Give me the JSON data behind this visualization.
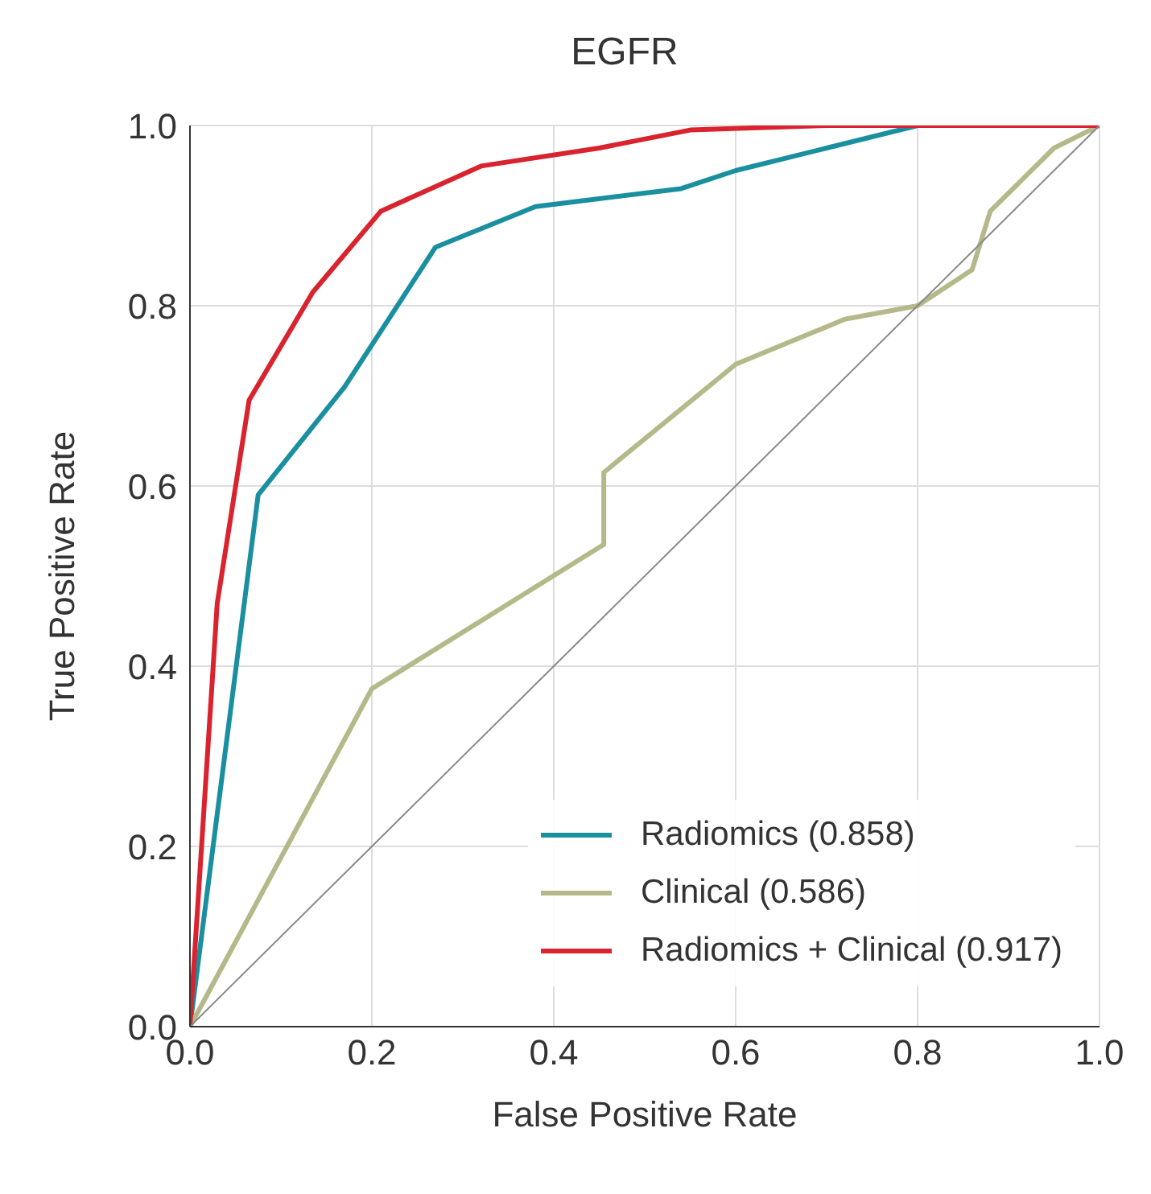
{
  "chart_data": {
    "type": "line",
    "title": "EGFR",
    "xlabel": "False Positive Rate",
    "ylabel": "True Positive Rate",
    "xlim": [
      0,
      1
    ],
    "ylim": [
      0,
      1
    ],
    "xticks": [
      {
        "value": 0,
        "label": "0.0"
      },
      {
        "value": 0.2,
        "label": "0.2"
      },
      {
        "value": 0.4,
        "label": "0.4"
      },
      {
        "value": 0.6,
        "label": "0.6"
      },
      {
        "value": 0.8,
        "label": "0.8"
      },
      {
        "value": 1,
        "label": "1.0"
      }
    ],
    "yticks": [
      {
        "value": 0,
        "label": "0.0"
      },
      {
        "value": 0.2,
        "label": "0.2"
      },
      {
        "value": 0.4,
        "label": "0.4"
      },
      {
        "value": 0.6,
        "label": "0.6"
      },
      {
        "value": 0.8,
        "label": "0.8"
      },
      {
        "value": 1,
        "label": "1.0"
      }
    ],
    "grid": true,
    "legend": "bottom right",
    "series": [
      {
        "name": "Radiomics (0.858)",
        "color": "#1a8fa0",
        "x": [
          0,
          0.075,
          0.17,
          0.27,
          0.38,
          0.54,
          0.6,
          0.7,
          0.8,
          1
        ],
        "values": [
          0,
          0.59,
          0.71,
          0.865,
          0.91,
          0.93,
          0.95,
          0.975,
          1,
          1
        ]
      },
      {
        "name": "Clinical (0.586)",
        "color": "#b5b98a",
        "x": [
          0,
          0.2,
          0.455,
          0.455,
          0.6,
          0.72,
          0.8,
          0.86,
          0.88,
          0.95,
          1
        ],
        "values": [
          0,
          0.375,
          0.535,
          0.615,
          0.735,
          0.785,
          0.8,
          0.84,
          0.905,
          0.975,
          1
        ]
      },
      {
        "name": "Radiomics + Clinical (0.917)",
        "color": "#d9232e",
        "x": [
          0,
          0.03,
          0.065,
          0.135,
          0.21,
          0.32,
          0.45,
          0.55,
          0.7,
          1
        ],
        "values": [
          0,
          0.47,
          0.695,
          0.815,
          0.905,
          0.955,
          0.975,
          0.995,
          1,
          1
        ]
      },
      {
        "color": "#888888",
        "x": [
          0,
          1
        ],
        "values": [
          0,
          1
        ]
      }
    ]
  }
}
